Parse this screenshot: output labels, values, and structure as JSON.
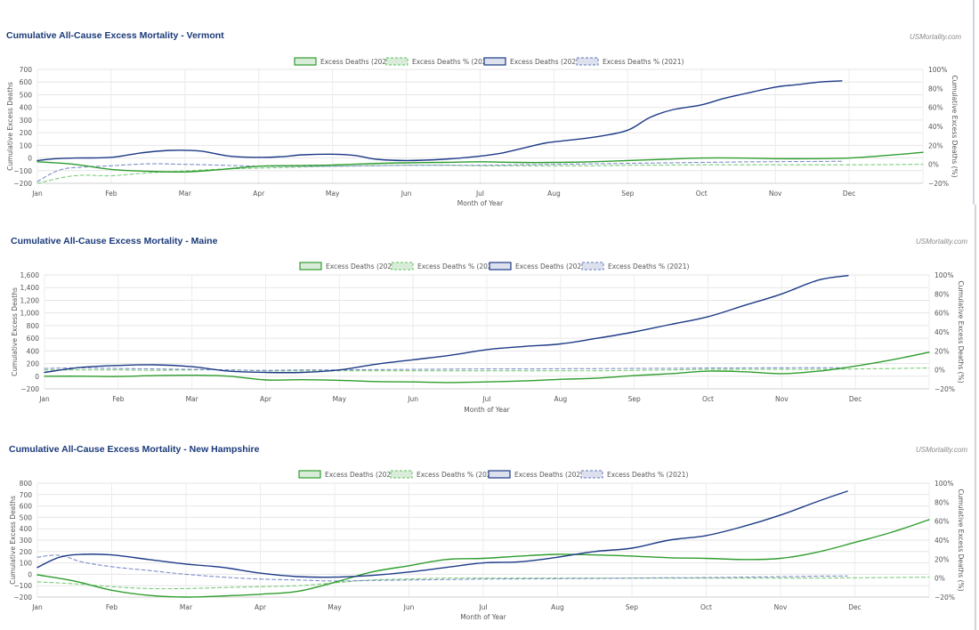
{
  "x_months": [
    "Jan",
    "Feb",
    "Mar",
    "Apr",
    "May",
    "Jun",
    "Jul",
    "Aug",
    "Sep",
    "Oct",
    "Nov",
    "Dec"
  ],
  "colors": {
    "green": "#2e9d2e",
    "navy": "#1c3a86",
    "green_dash": "#7ccc7c",
    "navy_dash": "#7f8fc8",
    "legend_green_fill": "#d9ecd9",
    "legend_navy_fill": "#dde1ee"
  },
  "charts": [
    {
      "title": "Cumulative All-Cause Excess Mortality - Vermont",
      "source": "USMortality.com",
      "legend": [
        "Excess Deaths (2020)",
        "Excess Deaths % (2020)",
        "Excess Deaths (2021)",
        "Excess Deaths % (2021)"
      ],
      "ylabel_left": "Cumulative Excess Deaths",
      "ylabel_right": "Cumulative Excess Deaths (%)",
      "xlabel": "Month of Year",
      "y_ticks": [
        700,
        600,
        500,
        400,
        300,
        200,
        100,
        0,
        -100,
        -200
      ],
      "y_tick_labels": [
        "700",
        "600",
        "500",
        "400",
        "300",
        "200",
        "100",
        "0",
        "−100",
        "−200"
      ],
      "y2_ticks": [
        100,
        80,
        60,
        40,
        20,
        0,
        -20
      ],
      "y2_tick_labels": [
        "100%",
        "80%",
        "60%",
        "40%",
        "20%",
        "0%",
        "−20%"
      ],
      "ylim": [
        -200,
        700
      ],
      "y2lim": [
        -20,
        100
      ]
    },
    {
      "title": "Cumulative All-Cause Excess Mortality - Maine",
      "source": "USMortality.com",
      "legend": [
        "Excess Deaths (2020)",
        "Excess Deaths % (2020)",
        "Excess Deaths (2021)",
        "Excess Deaths % (2021)"
      ],
      "ylabel_left": "Cumulative Excess Deaths",
      "ylabel_right": "Cumulative Excess Deaths (%)",
      "xlabel": "Month of Year",
      "y_ticks": [
        1600,
        1400,
        1200,
        1000,
        800,
        600,
        400,
        200,
        0,
        -200
      ],
      "y_tick_labels": [
        "1,600",
        "1,400",
        "1,200",
        "1,000",
        "800",
        "600",
        "400",
        "200",
        "0",
        "−200"
      ],
      "y2_ticks": [
        100,
        80,
        60,
        40,
        20,
        0,
        -20
      ],
      "y2_tick_labels": [
        "100%",
        "80%",
        "60%",
        "40%",
        "20%",
        "0%",
        "−20%"
      ],
      "ylim": [
        -200,
        1600
      ],
      "y2lim": [
        -20,
        100
      ]
    },
    {
      "title": "Cumulative All-Cause Excess Mortality - New Hampshire",
      "source": "USMortality.com",
      "legend": [
        "Excess Deaths (2020)",
        "Excess Deaths % (2020)",
        "Excess Deaths (2021)",
        "Excess Deaths % (2021)"
      ],
      "ylabel_left": "Cumulative Excess Deaths",
      "ylabel_right": "Cumulative Excess Deaths (%)",
      "xlabel": "Month of Year",
      "y_ticks": [
        800,
        700,
        600,
        500,
        400,
        300,
        200,
        100,
        0,
        -100,
        -200
      ],
      "y_tick_labels": [
        "800",
        "700",
        "600",
        "500",
        "400",
        "300",
        "200",
        "100",
        "0",
        "−100",
        "−200"
      ],
      "y2_ticks": [
        100,
        80,
        60,
        40,
        20,
        0,
        -20
      ],
      "y2_tick_labels": [
        "100%",
        "80%",
        "60%",
        "40%",
        "20%",
        "0%",
        "−20%"
      ],
      "ylim": [
        -200,
        800
      ],
      "y2lim": [
        -20,
        100
      ]
    }
  ],
  "chart_data": [
    {
      "type": "line",
      "title": "Cumulative All-Cause Excess Mortality - Vermont",
      "xlabel": "Month of Year",
      "ylabel": "Cumulative Excess Deaths",
      "y2label": "Cumulative Excess Deaths (%)",
      "x_unit": "month (0 = Jan 1, 12 = Dec 31)",
      "ylim": [
        -200,
        700
      ],
      "y2lim": [
        -20,
        100
      ],
      "legend_position": "top-center",
      "grid": true,
      "series": [
        {
          "name": "Excess Deaths (2020)",
          "axis": "left",
          "style": "solid",
          "color": "green",
          "x": [
            0,
            0.5,
            1,
            1.5,
            2,
            2.5,
            3,
            3.5,
            4,
            4.5,
            5,
            5.5,
            6,
            6.5,
            7,
            7.5,
            8,
            8.5,
            9,
            9.5,
            10,
            10.5,
            11,
            11.5,
            12
          ],
          "y": [
            -30,
            -50,
            -90,
            -105,
            -110,
            -90,
            -65,
            -60,
            -55,
            -45,
            -38,
            -35,
            -30,
            -35,
            -35,
            -30,
            -20,
            -10,
            0,
            0,
            -5,
            -5,
            0,
            20,
            45
          ]
        },
        {
          "name": "Excess Deaths % (2020)",
          "axis": "right",
          "style": "dashed",
          "color": "green_dash",
          "x": [
            0,
            0.5,
            1,
            1.5,
            2,
            2.5,
            3,
            3.5,
            4,
            4.5,
            5,
            5.5,
            6,
            6.5,
            7,
            7.5,
            8,
            8.5,
            9,
            9.5,
            10,
            10.5,
            11,
            11.5,
            12
          ],
          "y": [
            -20,
            -12,
            -12,
            -9,
            -7,
            -5,
            -4,
            -3,
            -2,
            -1.5,
            -1,
            -1,
            -1.5,
            -1.5,
            -1.5,
            -1.5,
            -1,
            -0.8,
            -0.5,
            -0.5,
            -0.5,
            -0.5,
            -0.5,
            -0.3,
            0
          ]
        },
        {
          "name": "Excess Deaths (2021)",
          "axis": "left",
          "style": "solid",
          "color": "navy",
          "x": [
            0,
            0.25,
            0.5,
            1,
            1.4,
            1.8,
            2.2,
            2.6,
            3,
            3.3,
            3.6,
            4,
            4.3,
            4.6,
            5,
            5.5,
            6,
            6.3,
            6.6,
            6.9,
            7.2,
            7.6,
            8,
            8.3,
            8.6,
            9,
            9.3,
            9.6,
            10,
            10.3,
            10.6,
            10.9
          ],
          "y": [
            -20,
            -5,
            0,
            5,
            40,
            60,
            55,
            15,
            5,
            10,
            25,
            30,
            20,
            -10,
            -20,
            -10,
            15,
            40,
            80,
            120,
            140,
            170,
            220,
            320,
            380,
            420,
            470,
            510,
            560,
            580,
            600,
            610
          ]
        },
        {
          "name": "Excess Deaths % (2021)",
          "axis": "right",
          "style": "dashed",
          "color": "navy_dash",
          "x": [
            0,
            0.3,
            0.6,
            1,
            1.5,
            2,
            2.5,
            3,
            3.5,
            4,
            4.5,
            5,
            5.5,
            6,
            6.5,
            7,
            7.5,
            8,
            8.5,
            9,
            9.5,
            10,
            10.5,
            10.9
          ],
          "y": [
            -18,
            -6,
            -3,
            -1.5,
            0.5,
            0,
            -1,
            -2,
            -2,
            -2,
            -1.5,
            -1,
            -1,
            -1,
            -0.5,
            0,
            0.5,
            1,
            1.5,
            2,
            2.5,
            2.8,
            3,
            3.2
          ]
        }
      ]
    },
    {
      "type": "line",
      "title": "Cumulative All-Cause Excess Mortality - Maine",
      "xlabel": "Month of Year",
      "ylabel": "Cumulative Excess Deaths",
      "y2label": "Cumulative Excess Deaths (%)",
      "x_unit": "month (0 = Jan 1, 12 = Dec 31)",
      "ylim": [
        -200,
        1600
      ],
      "y2lim": [
        -20,
        100
      ],
      "legend_position": "top-center",
      "grid": true,
      "series": [
        {
          "name": "Excess Deaths (2020)",
          "axis": "left",
          "style": "solid",
          "color": "green",
          "x": [
            0,
            0.5,
            1,
            1.5,
            2,
            2.5,
            3,
            3.5,
            4,
            4.5,
            5,
            5.5,
            6,
            6.5,
            7,
            7.5,
            8,
            8.5,
            9,
            9.5,
            10,
            10.5,
            11,
            11.5,
            12
          ],
          "y": [
            0,
            0,
            -5,
            10,
            15,
            0,
            -60,
            -55,
            -65,
            -85,
            -90,
            -100,
            -90,
            -75,
            -50,
            -30,
            10,
            40,
            80,
            70,
            40,
            80,
            160,
            260,
            380
          ]
        },
        {
          "name": "Excess Deaths % (2020)",
          "axis": "right",
          "style": "dashed",
          "color": "green_dash",
          "x": [
            0,
            0.5,
            1,
            1.5,
            2,
            2.5,
            3,
            3.5,
            4,
            4.5,
            5,
            5.5,
            6,
            6.5,
            7,
            7.5,
            8,
            8.5,
            9,
            9.5,
            10,
            10.5,
            11,
            11.5,
            12
          ],
          "y": [
            0,
            0,
            0,
            -0.5,
            0,
            0,
            -1,
            -1,
            -1,
            -1,
            -1,
            -1,
            -1,
            -1,
            -1,
            -1,
            -0.5,
            0,
            0.5,
            0.5,
            0.5,
            0.5,
            1,
            1.5,
            2
          ]
        },
        {
          "name": "Excess Deaths (2021)",
          "axis": "left",
          "style": "solid",
          "color": "navy",
          "x": [
            0,
            0.5,
            1,
            1.5,
            2,
            2.5,
            3,
            3.5,
            4,
            4.5,
            5,
            5.5,
            6,
            6.5,
            7,
            7.5,
            8,
            8.5,
            9,
            9.5,
            10,
            10.5,
            10.9
          ],
          "y": [
            60,
            140,
            170,
            180,
            150,
            80,
            60,
            60,
            100,
            190,
            260,
            330,
            420,
            470,
            510,
            600,
            700,
            820,
            940,
            1120,
            1300,
            1520,
            1590
          ]
        },
        {
          "name": "Excess Deaths % (2021)",
          "axis": "right",
          "style": "dashed",
          "color": "navy_dash",
          "x": [
            0,
            0.3,
            0.6,
            1,
            1.5,
            2,
            2.5,
            3,
            3.5,
            4,
            4.5,
            5,
            5.5,
            6,
            6.5,
            7,
            7.5,
            8,
            8.5,
            9,
            9.5,
            10,
            10.5,
            10.9
          ],
          "y": [
            1.5,
            2,
            2,
            1.5,
            1,
            0.5,
            0,
            -0.5,
            0,
            0,
            0.3,
            0.5,
            0.8,
            1,
            1,
            1.2,
            1.3,
            1.5,
            1.7,
            1.9,
            2,
            2.1,
            2.2,
            2.2
          ]
        }
      ]
    },
    {
      "type": "line",
      "title": "Cumulative All-Cause Excess Mortality - New Hampshire",
      "xlabel": "Month of Year",
      "ylabel": "Cumulative Excess Deaths",
      "y2label": "Cumulative Excess Deaths (%)",
      "x_unit": "month (0 = Jan 1, 12 = Dec 31)",
      "ylim": [
        -200,
        800
      ],
      "y2lim": [
        -20,
        100
      ],
      "legend_position": "top-center",
      "grid": true,
      "series": [
        {
          "name": "Excess Deaths (2020)",
          "axis": "left",
          "style": "solid",
          "color": "green",
          "x": [
            0,
            0.5,
            1,
            1.5,
            2,
            2.5,
            3,
            3.5,
            4,
            4.5,
            5,
            5.5,
            6,
            6.5,
            7,
            7.5,
            8,
            8.5,
            9,
            9.5,
            10,
            10.5,
            11,
            11.5,
            12
          ],
          "y": [
            -5,
            -60,
            -140,
            -185,
            -200,
            -190,
            -175,
            -150,
            -70,
            20,
            75,
            130,
            140,
            160,
            175,
            170,
            160,
            145,
            140,
            130,
            140,
            195,
            280,
            370,
            480
          ]
        },
        {
          "name": "Excess Deaths % (2020)",
          "axis": "right",
          "style": "dashed",
          "color": "green_dash",
          "x": [
            0,
            0.5,
            1,
            1.5,
            2,
            2.5,
            3,
            3.5,
            4,
            4.5,
            5,
            5.5,
            6,
            6.5,
            7,
            7.5,
            8,
            8.5,
            9,
            9.5,
            10,
            10.5,
            11,
            11.5,
            12
          ],
          "y": [
            -4,
            -6,
            -9,
            -11,
            -11,
            -10,
            -9,
            -8,
            -5,
            -2,
            -1,
            0,
            0,
            0,
            0,
            0,
            0,
            0,
            0,
            0,
            0,
            0,
            0.3,
            0.6,
            1
          ]
        },
        {
          "name": "Excess Deaths (2021)",
          "axis": "left",
          "style": "solid",
          "color": "navy",
          "x": [
            0,
            0.3,
            0.6,
            1,
            1.5,
            2,
            2.5,
            3,
            3.5,
            4,
            4.5,
            5,
            5.5,
            6,
            6.5,
            7,
            7.5,
            8,
            8.5,
            9,
            9.5,
            10,
            10.5,
            10.9
          ],
          "y": [
            60,
            150,
            175,
            170,
            130,
            90,
            60,
            10,
            -20,
            -25,
            -10,
            20,
            60,
            100,
            110,
            150,
            200,
            230,
            300,
            340,
            420,
            520,
            640,
            730
          ]
        },
        {
          "name": "Excess Deaths % (2021)",
          "axis": "right",
          "style": "dashed",
          "color": "navy_dash",
          "x": [
            0,
            0.3,
            0.6,
            1,
            1.5,
            2,
            2.5,
            3,
            3.5,
            4,
            4.5,
            5,
            5.5,
            6,
            6.5,
            7,
            7.5,
            8,
            8.5,
            9,
            9.5,
            10,
            10.5,
            10.9
          ],
          "y": [
            22,
            24,
            17,
            12,
            8,
            4,
            1,
            -1,
            -2,
            -3,
            -2.5,
            -2,
            -1.5,
            -1,
            -0.8,
            -0.6,
            -0.4,
            0,
            0.3,
            0.5,
            1,
            1.5,
            2,
            2.2
          ]
        }
      ]
    }
  ]
}
